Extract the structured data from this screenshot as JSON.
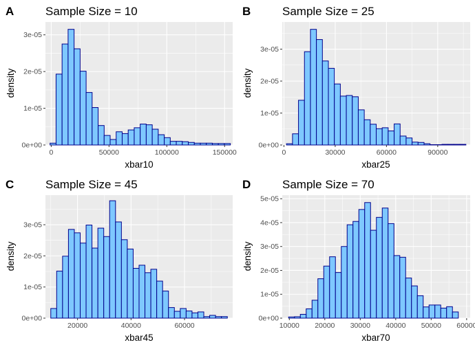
{
  "colors": {
    "panel_bg": "#ebebeb",
    "grid": "#ffffff",
    "bar_fill": "#7ec8ff",
    "bar_stroke": "#00008b",
    "tick_text": "#4d4d4d"
  },
  "chart_data": [
    {
      "type": "bar",
      "letter": "A",
      "title": "Sample Size = 10",
      "xlabel": "xbar10",
      "ylabel": "density",
      "grid": true,
      "xlim": [
        -5000,
        157000
      ],
      "ylim": [
        0,
        3.35e-05
      ],
      "x_ticks": [
        0,
        50000,
        100000,
        150000
      ],
      "x_tick_labels": [
        "0",
        "50000",
        "100000",
        "150000"
      ],
      "y_ticks": [
        0,
        1e-05,
        2e-05,
        3e-05
      ],
      "y_tick_labels": [
        "0e+00",
        "1e-05",
        "2e-05",
        "3e-05"
      ],
      "bin_start": -1000,
      "bin_width": 5200,
      "values": [
        5e-07,
        1.93e-05,
        2.75e-05,
        3.15e-05,
        2.62e-05,
        2.01e-05,
        1.43e-05,
        1.02e-05,
        5.3e-06,
        2.6e-06,
        1.5e-06,
        3.6e-06,
        3.1e-06,
        4.1e-06,
        4.7e-06,
        5.7e-06,
        5.5e-06,
        4.3e-06,
        2.8e-06,
        2e-06,
        1e-06,
        1e-06,
        9e-07,
        7e-07,
        5e-07,
        5e-07,
        5e-07,
        4e-07,
        4e-07,
        4e-07
      ]
    },
    {
      "type": "bar",
      "letter": "B",
      "title": "Sample Size = 25",
      "xlabel": "xbar25",
      "ylabel": "density",
      "grid": true,
      "xlim": [
        -1000,
        109000
      ],
      "ylim": [
        0,
        3.85e-05
      ],
      "x_ticks": [
        0,
        30000,
        60000,
        90000
      ],
      "x_tick_labels": [
        "0",
        "30000",
        "60000",
        "90000"
      ],
      "y_ticks": [
        0,
        1e-05,
        2e-05,
        3e-05
      ],
      "y_tick_labels": [
        "0e+00",
        "1e-05",
        "2e-05",
        "3e-05"
      ],
      "bin_start": 1500,
      "bin_width": 3500,
      "values": [
        4e-07,
        3.5e-06,
        1.4e-05,
        2.92e-05,
        3.62e-05,
        3.3e-05,
        2.63e-05,
        2.4e-05,
        1.91e-05,
        1.53e-05,
        1.55e-05,
        1.51e-05,
        1.1e-05,
        7.9e-06,
        6.5e-06,
        5.1e-06,
        5.4e-06,
        4.4e-06,
        6.6e-06,
        2.8e-06,
        2.2e-06,
        9e-07,
        8e-07,
        4e-07,
        1e-07,
        1e-07,
        2e-07,
        2e-07,
        2e-07,
        2e-07
      ]
    },
    {
      "type": "bar",
      "letter": "C",
      "title": "Sample Size = 45",
      "xlabel": "xbar45",
      "ylabel": "density",
      "grid": true,
      "xlim": [
        8000,
        78000
      ],
      "ylim": [
        0,
        3.95e-05
      ],
      "x_ticks": [
        20000,
        40000,
        60000
      ],
      "x_tick_labels": [
        "20000",
        "40000",
        "60000"
      ],
      "y_ticks": [
        0,
        1e-05,
        2e-05,
        3e-05
      ],
      "y_tick_labels": [
        "0e+00",
        "1e-05",
        "2e-05",
        "3e-05"
      ],
      "bin_start": 10000,
      "bin_width": 2200,
      "values": [
        3.1e-06,
        1.51e-05,
        1.99e-05,
        2.85e-05,
        2.74e-05,
        2.41e-05,
        2.99e-05,
        2.25e-05,
        2.89e-05,
        2.62e-05,
        3.77e-05,
        3.09e-05,
        2.52e-05,
        2.22e-05,
        1.6e-05,
        1.7e-05,
        1.46e-05,
        1.57e-05,
        1.19e-05,
        8.7e-06,
        3.4e-06,
        2.2e-06,
        3.1e-06,
        2.3e-06,
        1.7e-06,
        2e-06,
        5e-07,
        9e-07,
        5e-07,
        5e-07
      ]
    },
    {
      "type": "bar",
      "letter": "D",
      "title": "Sample Size = 70",
      "xlabel": "xbar70",
      "ylabel": "density",
      "grid": true,
      "xlim": [
        8000,
        61000
      ],
      "ylim": [
        0,
        5.15e-05
      ],
      "x_ticks": [
        10000,
        20000,
        30000,
        40000,
        50000,
        60000
      ],
      "x_tick_labels": [
        "10000",
        "20000",
        "30000",
        "40000",
        "50000",
        "60000"
      ],
      "y_ticks": [
        0,
        1e-05,
        2e-05,
        3e-05,
        4e-05,
        5e-05
      ],
      "y_tick_labels": [
        "0e+00",
        "1e-05",
        "2e-05",
        "3e-05",
        "4e-05",
        "5e-05"
      ],
      "bin_start": 9800,
      "bin_width": 1650,
      "values": [
        5e-07,
        6e-07,
        1.6e-06,
        3.9e-06,
        7.5e-06,
        1.65e-05,
        2.18e-05,
        2.57e-05,
        1.91e-05,
        3e-05,
        3.91e-05,
        4.05e-05,
        4.55e-05,
        4.84e-05,
        3.68e-05,
        4.22e-05,
        4.61e-05,
        3.96e-05,
        2.62e-05,
        2.55e-05,
        1.68e-05,
        1.35e-05,
        9.4e-06,
        4.7e-06,
        5.5e-06,
        5.5e-06,
        4.2e-06,
        4.8e-06,
        2.6e-06
      ]
    }
  ]
}
